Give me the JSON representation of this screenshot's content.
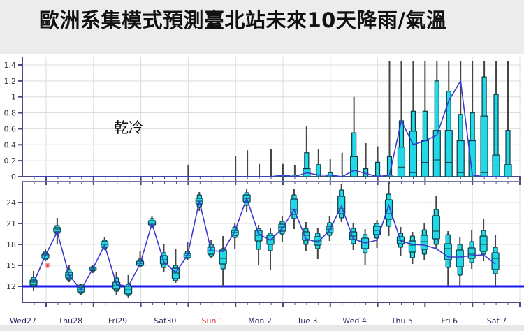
{
  "title": "歐洲系集模式預測臺北站未來10天降雨/氣溫",
  "annotation": "乾冷",
  "colors": {
    "box_fill": "#22d8e6",
    "box_stroke": "#0b3b44",
    "whisker": "#444444",
    "mean_line": "#3a3acf",
    "threshold_line": "#1a1aee",
    "axis": "#4a4a80",
    "grid": "#dddddd",
    "sunday_label": "#e03030",
    "weekday_label": "#2a2a60"
  },
  "chart_data": [
    {
      "type": "box",
      "title": "Precipitation ensemble (6-hourly)",
      "ylabel": "",
      "ylim": [
        0,
        1.45
      ],
      "yticks": [
        0,
        0.2,
        0.4,
        0.6,
        0.8,
        1,
        1.2,
        1.4
      ],
      "ytick_labels": [
        "0",
        "0.2",
        "0.4",
        "0.6",
        "0.8",
        "1",
        "1.2",
        "1.4"
      ],
      "grid": true,
      "x_start_index": 0,
      "points": [
        {
          "i": 0,
          "min": 0,
          "q1": 0,
          "med": 0,
          "q3": 0,
          "p90": 0,
          "max": 0,
          "mean": 0
        },
        {
          "i": 1,
          "min": 0,
          "q1": 0,
          "med": 0,
          "q3": 0,
          "p90": 0,
          "max": 0,
          "mean": 0
        },
        {
          "i": 2,
          "min": 0,
          "q1": 0,
          "med": 0,
          "q3": 0,
          "p90": 0,
          "max": 0,
          "mean": 0
        },
        {
          "i": 3,
          "min": 0,
          "q1": 0,
          "med": 0,
          "q3": 0,
          "p90": 0,
          "max": 0,
          "mean": 0
        },
        {
          "i": 4,
          "min": 0,
          "q1": 0,
          "med": 0,
          "q3": 0,
          "p90": 0,
          "max": 0,
          "mean": 0
        },
        {
          "i": 5,
          "min": 0,
          "q1": 0,
          "med": 0,
          "q3": 0,
          "p90": 0,
          "max": 0,
          "mean": 0
        },
        {
          "i": 6,
          "min": 0,
          "q1": 0,
          "med": 0,
          "q3": 0,
          "p90": 0,
          "max": 0,
          "mean": 0
        },
        {
          "i": 7,
          "min": 0,
          "q1": 0,
          "med": 0,
          "q3": 0,
          "p90": 0,
          "max": 0,
          "mean": 0
        },
        {
          "i": 8,
          "min": 0,
          "q1": 0,
          "med": 0,
          "q3": 0,
          "p90": 0,
          "max": 0,
          "mean": 0
        },
        {
          "i": 9,
          "min": 0,
          "q1": 0,
          "med": 0,
          "q3": 0,
          "p90": 0,
          "max": 0,
          "mean": 0
        },
        {
          "i": 10,
          "min": 0,
          "q1": 0,
          "med": 0,
          "q3": 0,
          "p90": 0,
          "max": 0,
          "mean": 0
        },
        {
          "i": 11,
          "min": 0,
          "q1": 0,
          "med": 0,
          "q3": 0,
          "p90": 0,
          "max": 0,
          "mean": 0
        },
        {
          "i": 12,
          "min": 0,
          "q1": 0,
          "med": 0,
          "q3": 0,
          "p90": 0,
          "max": 0,
          "mean": 0
        },
        {
          "i": 13,
          "min": 0,
          "q1": 0,
          "med": 0,
          "q3": 0,
          "p90": 0,
          "max": 0.15,
          "mean": 0
        },
        {
          "i": 14,
          "min": 0,
          "q1": 0,
          "med": 0,
          "q3": 0,
          "p90": 0,
          "max": 0,
          "mean": 0
        },
        {
          "i": 15,
          "min": 0,
          "q1": 0,
          "med": 0,
          "q3": 0,
          "p90": 0,
          "max": 0,
          "mean": 0
        },
        {
          "i": 16,
          "min": 0,
          "q1": 0,
          "med": 0,
          "q3": 0,
          "p90": 0,
          "max": 0,
          "mean": 0
        },
        {
          "i": 17,
          "min": 0,
          "q1": 0,
          "med": 0,
          "q3": 0,
          "p90": 0,
          "max": 0.26,
          "mean": 0
        },
        {
          "i": 18,
          "min": 0,
          "q1": 0,
          "med": 0,
          "q3": 0,
          "p90": 0,
          "max": 0.33,
          "mean": 0
        },
        {
          "i": 19,
          "min": 0,
          "q1": 0,
          "med": 0,
          "q3": 0,
          "p90": 0,
          "max": 0.16,
          "mean": 0
        },
        {
          "i": 20,
          "min": 0,
          "q1": 0,
          "med": 0,
          "q3": 0,
          "p90": 0,
          "max": 0.35,
          "mean": 0
        },
        {
          "i": 21,
          "min": 0,
          "q1": 0,
          "med": 0,
          "q3": 0,
          "p90": 0.02,
          "max": 0.16,
          "mean": 0.02
        },
        {
          "i": 22,
          "min": 0,
          "q1": 0,
          "med": 0,
          "q3": 0,
          "p90": 0.02,
          "max": 0.14,
          "mean": 0
        },
        {
          "i": 23,
          "min": 0,
          "q1": 0,
          "med": 0,
          "q3": 0.1,
          "p90": 0.3,
          "max": 0.63,
          "mean": 0.05
        },
        {
          "i": 24,
          "min": 0,
          "q1": 0,
          "med": 0,
          "q3": 0,
          "p90": 0.15,
          "max": 0.35,
          "mean": 0.02
        },
        {
          "i": 25,
          "min": 0,
          "q1": 0,
          "med": 0,
          "q3": 0.02,
          "p90": 0.05,
          "max": 0.22,
          "mean": 0.02
        },
        {
          "i": 26,
          "min": 0,
          "q1": 0,
          "med": 0,
          "q3": 0,
          "p90": 0,
          "max": 0.3,
          "mean": 0
        },
        {
          "i": 27,
          "min": 0,
          "q1": 0,
          "med": 0,
          "q3": 0.25,
          "p90": 0.55,
          "max": 1.0,
          "mean": 0.08
        },
        {
          "i": 28,
          "min": 0,
          "q1": 0,
          "med": 0,
          "q3": 0,
          "p90": 0.1,
          "max": 0.42,
          "mean": 0.04
        },
        {
          "i": 29,
          "min": 0,
          "q1": 0,
          "med": 0,
          "q3": 0.02,
          "p90": 0.18,
          "max": 0.38,
          "mean": 0
        },
        {
          "i": 30,
          "min": 0,
          "q1": 0,
          "med": 0,
          "q3": 0.02,
          "p90": 0.25,
          "max": 1.45,
          "mean": 0.02
        },
        {
          "i": 31,
          "min": 0,
          "q1": 0,
          "med": 0.12,
          "q3": 0.37,
          "p90": 0.7,
          "max": 1.45,
          "mean": 0.7
        },
        {
          "i": 32,
          "min": 0,
          "q1": 0.02,
          "med": 0.05,
          "q3": 0.57,
          "p90": 0.82,
          "max": 1.45,
          "mean": 0.4
        },
        {
          "i": 33,
          "min": 0,
          "q1": 0,
          "med": 0.18,
          "q3": 0.45,
          "p90": 0.82,
          "max": 1.45,
          "mean": 0.45
        },
        {
          "i": 34,
          "min": 0.02,
          "q1": 0.02,
          "med": 0.21,
          "q3": 0.58,
          "p90": 1.2,
          "max": 1.45,
          "mean": 0.52
        },
        {
          "i": 35,
          "min": 0,
          "q1": 0.02,
          "med": 0.18,
          "q3": 0.58,
          "p90": 1.07,
          "max": 1.45,
          "mean": 0.95
        },
        {
          "i": 36,
          "min": 0,
          "q1": 0,
          "med": 0.05,
          "q3": 0.45,
          "p90": 0.78,
          "max": 1.45,
          "mean": 1.2
        },
        {
          "i": 37,
          "min": 0,
          "q1": 0,
          "med": 0,
          "q3": 0.45,
          "p90": 0.8,
          "max": 1.45,
          "mean": 0.02
        },
        {
          "i": 38,
          "min": 0,
          "q1": 0,
          "med": 0.05,
          "q3": 0.76,
          "p90": 1.25,
          "max": 1.45,
          "mean": 0
        },
        {
          "i": 39,
          "min": 0,
          "q1": 0,
          "med": 0,
          "q3": 0.27,
          "p90": 1.03,
          "max": 1.45,
          "mean": 0
        },
        {
          "i": 40,
          "min": 0,
          "q1": 0,
          "med": 0,
          "q3": 0.15,
          "p90": 0.58,
          "max": 1.45,
          "mean": 0
        }
      ]
    },
    {
      "type": "box",
      "title": "2m temperature ensemble (6-hourly)",
      "ylabel": "",
      "ylim": [
        9.8,
        26.8
      ],
      "yticks": [
        12,
        15,
        18,
        21,
        24
      ],
      "ytick_labels": [
        "12",
        "15",
        "18",
        "21",
        "24"
      ],
      "threshold": 12,
      "grid": true,
      "categories": [
        "Wed27",
        "Thu28",
        "Fri29",
        "Sat30",
        "Sun 1",
        "Mon 2",
        "Tue 3",
        "Wed 4",
        "Thu 5",
        "Fri 6",
        "Sat 7"
      ],
      "points": [
        {
          "i": 0,
          "min": 11.3,
          "q1": 12.2,
          "med": 12.6,
          "q3": 12.9,
          "p10": 12.0,
          "p90": 13.3,
          "max": 14.2,
          "mean": 12.5
        },
        {
          "i": 1,
          "min": 15.6,
          "q1": 16.0,
          "med": 16.4,
          "q3": 16.6,
          "p10": 15.8,
          "p90": 16.9,
          "max": 17.4,
          "mean": 16.4
        },
        {
          "i": 2,
          "min": 18.0,
          "q1": 19.8,
          "med": 20.2,
          "q3": 20.4,
          "p10": 19.5,
          "p90": 20.7,
          "max": 21.8,
          "mean": 19.8
        },
        {
          "i": 3,
          "min": 12.6,
          "q1": 13.2,
          "med": 13.6,
          "q3": 14.0,
          "p10": 12.9,
          "p90": 14.4,
          "max": 15.0,
          "mean": 13.6
        },
        {
          "i": 4,
          "min": 10.7,
          "q1": 11.2,
          "med": 11.5,
          "q3": 11.9,
          "p10": 11.0,
          "p90": 12.2,
          "max": 12.4,
          "mean": 11.5
        },
        {
          "i": 5,
          "min": 13.9,
          "q1": 14.3,
          "med": 14.5,
          "q3": 14.7,
          "p10": 14.2,
          "p90": 14.8,
          "max": 15.0,
          "mean": 14.5
        },
        {
          "i": 6,
          "min": 17.2,
          "q1": 17.6,
          "med": 18.0,
          "q3": 18.4,
          "p10": 17.4,
          "p90": 18.6,
          "max": 19.0,
          "mean": 17.9
        },
        {
          "i": 7,
          "min": 10.8,
          "q1": 11.6,
          "med": 12.1,
          "q3": 12.6,
          "p10": 11.3,
          "p90": 13.2,
          "max": 14.0,
          "mean": 12.3
        },
        {
          "i": 8,
          "min": 10.3,
          "q1": 10.9,
          "med": 11.5,
          "q3": 12.0,
          "p10": 10.7,
          "p90": 12.3,
          "max": 13.6,
          "mean": 12.0
        },
        {
          "i": 9,
          "min": 14.8,
          "q1": 15.0,
          "med": 15.3,
          "q3": 15.6,
          "p10": 14.9,
          "p90": 15.9,
          "max": 17.0,
          "mean": 15.2
        },
        {
          "i": 10,
          "min": 20.3,
          "q1": 20.8,
          "med": 21.0,
          "q3": 21.4,
          "p10": 20.6,
          "p90": 21.7,
          "max": 22.0,
          "mean": 21.0
        },
        {
          "i": 11,
          "min": 14.0,
          "q1": 15.2,
          "med": 15.8,
          "q3": 16.4,
          "p10": 14.7,
          "p90": 16.8,
          "max": 18.0,
          "mean": 15.5
        },
        {
          "i": 12,
          "min": 12.5,
          "q1": 13.1,
          "med": 13.9,
          "q3": 14.6,
          "p10": 12.8,
          "p90": 15.0,
          "max": 17.4,
          "mean": 14.0
        },
        {
          "i": 13,
          "min": 15.8,
          "q1": 16.1,
          "med": 16.4,
          "q3": 16.7,
          "p10": 16.0,
          "p90": 17.0,
          "max": 18.4,
          "mean": 16.4
        },
        {
          "i": 14,
          "min": 22.8,
          "q1": 23.8,
          "med": 24.2,
          "q3": 24.6,
          "p10": 23.3,
          "p90": 25.1,
          "max": 25.5,
          "mean": 24.2
        },
        {
          "i": 15,
          "min": 16.0,
          "q1": 16.6,
          "med": 17.1,
          "q3": 17.6,
          "p10": 16.3,
          "p90": 18.0,
          "max": 18.7,
          "mean": 17.1
        },
        {
          "i": 16,
          "min": 11.9,
          "q1": 15.2,
          "med": 16.0,
          "q3": 17.2,
          "p10": 14.5,
          "p90": 17.4,
          "max": 19.2,
          "mean": 17.0
        },
        {
          "i": 17,
          "min": 17.3,
          "q1": 19.3,
          "med": 19.7,
          "q3": 20.0,
          "p10": 19.0,
          "p90": 20.5,
          "max": 21.0,
          "mean": 19.9
        },
        {
          "i": 18,
          "min": 22.7,
          "q1": 24.1,
          "med": 24.6,
          "q3": 25.1,
          "p10": 23.6,
          "p90": 25.4,
          "max": 25.9,
          "mean": 24.6
        },
        {
          "i": 19,
          "min": 15.0,
          "q1": 18.5,
          "med": 19.3,
          "q3": 20.0,
          "p10": 17.3,
          "p90": 20.3,
          "max": 20.8,
          "mean": 19.5
        },
        {
          "i": 20,
          "min": 14.4,
          "q1": 18.0,
          "med": 18.7,
          "q3": 19.3,
          "p10": 17.1,
          "p90": 19.6,
          "max": 20.4,
          "mean": 18.6
        },
        {
          "i": 21,
          "min": 18.3,
          "q1": 19.9,
          "med": 20.5,
          "q3": 20.9,
          "p10": 19.5,
          "p90": 21.3,
          "max": 22.0,
          "mean": 20.3
        },
        {
          "i": 22,
          "min": 20.2,
          "q1": 22.3,
          "med": 23.0,
          "q3": 24.5,
          "p10": 21.7,
          "p90": 25.1,
          "max": 26.0,
          "mean": 23.0
        },
        {
          "i": 23,
          "min": 17.1,
          "q1": 18.6,
          "med": 19.3,
          "q3": 19.8,
          "p10": 18.0,
          "p90": 20.3,
          "max": 21.2,
          "mean": 18.8
        },
        {
          "i": 24,
          "min": 15.9,
          "q1": 17.9,
          "med": 18.5,
          "q3": 19.1,
          "p10": 17.4,
          "p90": 19.6,
          "max": 20.3,
          "mean": 18.3
        },
        {
          "i": 25,
          "min": 18.5,
          "q1": 19.7,
          "med": 20.2,
          "q3": 20.6,
          "p10": 19.3,
          "p90": 21.1,
          "max": 22.1,
          "mean": 20.0
        },
        {
          "i": 26,
          "min": 21.2,
          "q1": 22.4,
          "med": 23.1,
          "q3": 24.9,
          "p10": 21.8,
          "p90": 25.8,
          "max": 26.6,
          "mean": 23.5
        },
        {
          "i": 27,
          "min": 17.2,
          "q1": 18.7,
          "med": 19.2,
          "q3": 19.8,
          "p10": 18.1,
          "p90": 20.3,
          "max": 21.1,
          "mean": 18.8
        },
        {
          "i": 28,
          "min": 15.0,
          "q1": 17.4,
          "med": 18.3,
          "q3": 18.9,
          "p10": 16.8,
          "p90": 19.4,
          "max": 20.2,
          "mean": 18.2
        },
        {
          "i": 29,
          "min": 17.5,
          "q1": 19.4,
          "med": 20.0,
          "q3": 20.6,
          "p10": 18.9,
          "p90": 21.0,
          "max": 21.5,
          "mean": 18.6
        },
        {
          "i": 30,
          "min": 19.2,
          "q1": 21.6,
          "med": 22.4,
          "q3": 24.4,
          "p10": 20.6,
          "p90": 25.2,
          "max": 27.0,
          "mean": 23.6
        },
        {
          "i": 31,
          "min": 16.4,
          "q1": 18.1,
          "med": 18.6,
          "q3": 19.1,
          "p10": 17.6,
          "p90": 19.6,
          "max": 20.5,
          "mean": 18.5
        },
        {
          "i": 32,
          "min": 15.2,
          "q1": 16.9,
          "med": 17.9,
          "q3": 18.5,
          "p10": 16.1,
          "p90": 19.2,
          "max": 19.8,
          "mean": 18.0
        },
        {
          "i": 33,
          "min": 15.8,
          "q1": 17.3,
          "med": 18.4,
          "q3": 19.3,
          "p10": 16.6,
          "p90": 20.1,
          "max": 21.0,
          "mean": 17.9
        },
        {
          "i": 34,
          "min": 17.4,
          "q1": 18.8,
          "med": 19.9,
          "q3": 22.1,
          "p10": 18.0,
          "p90": 23.0,
          "max": 25.0,
          "mean": 17.4
        },
        {
          "i": 35,
          "min": 12.0,
          "q1": 15.8,
          "med": 17.4,
          "q3": 18.1,
          "p10": 14.7,
          "p90": 19.4,
          "max": 19.9,
          "mean": 16.2
        },
        {
          "i": 36,
          "min": 12.0,
          "q1": 14.8,
          "med": 16.2,
          "q3": 17.2,
          "p10": 13.6,
          "p90": 18.0,
          "max": 19.1,
          "mean": 16.2
        },
        {
          "i": 37,
          "min": 14.5,
          "q1": 16.0,
          "med": 16.6,
          "q3": 17.5,
          "p10": 15.4,
          "p90": 18.4,
          "max": 20.0,
          "mean": 16.4
        },
        {
          "i": 38,
          "min": 15.6,
          "q1": 17.0,
          "med": 18.0,
          "q3": 19.2,
          "p10": 16.6,
          "p90": 20.0,
          "max": 21.6,
          "mean": 16.5
        },
        {
          "i": 39,
          "min": 12.0,
          "q1": 14.4,
          "med": 16.0,
          "q3": 16.8,
          "p10": 13.8,
          "p90": 17.6,
          "max": 19.4,
          "mean": 15.2
        }
      ]
    }
  ]
}
